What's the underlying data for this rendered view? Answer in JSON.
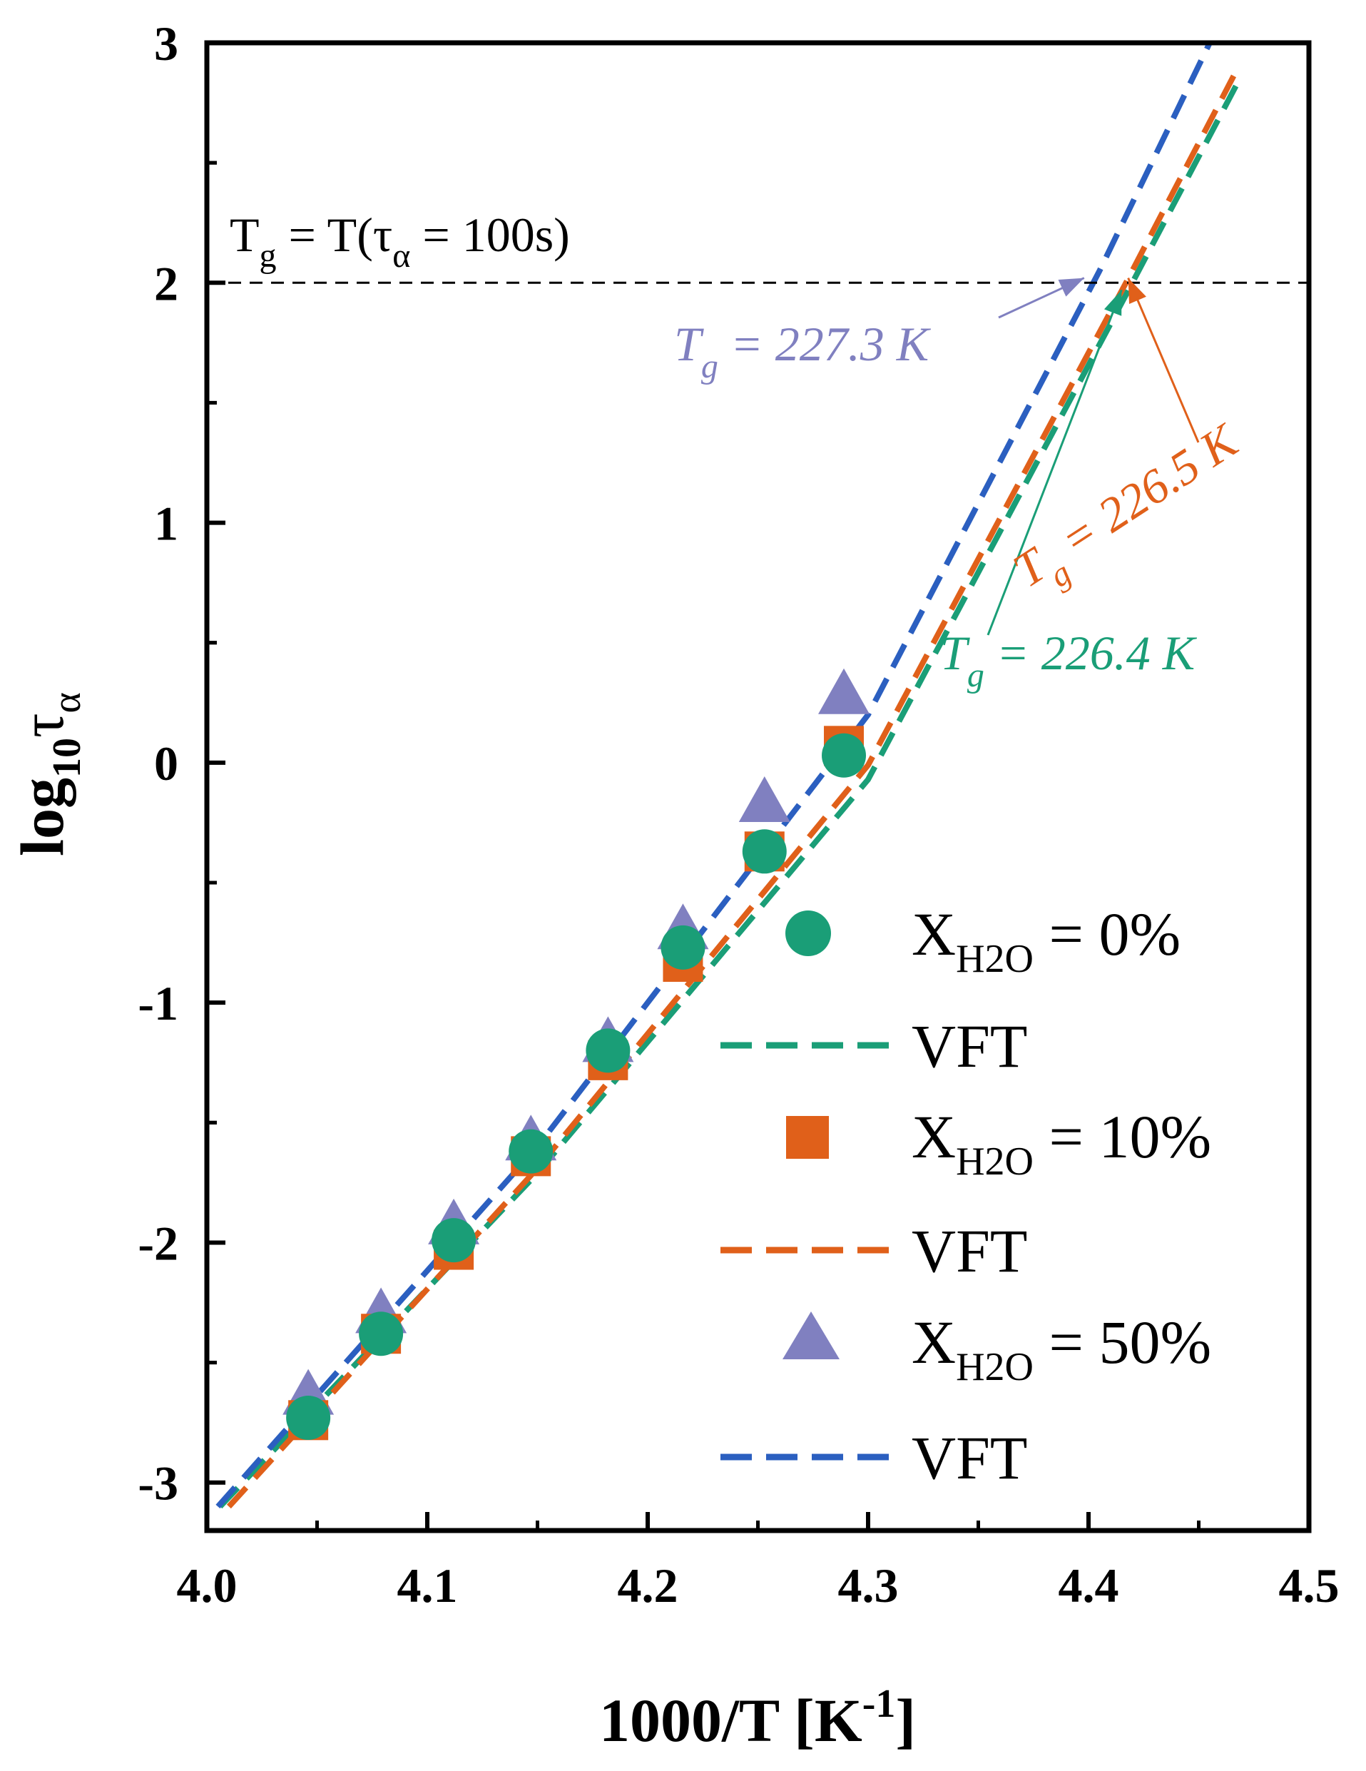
{
  "chart_data": {
    "type": "scatter",
    "xlabel_main": "1000/T [K",
    "xlabel_sup": "-1",
    "xlabel_end": "]",
    "ylabel_main": "log",
    "ylabel_sub": "10",
    "ylabel_tau": "τ",
    "ylabel_tau_sub": "α",
    "xlim": [
      4.0,
      4.5
    ],
    "ylim": [
      -3.2,
      3.0
    ],
    "xticks": [
      "4.0",
      "4.1",
      "4.2",
      "4.3",
      "4.4",
      "4.5"
    ],
    "xtick_values": [
      4.0,
      4.1,
      4.2,
      4.3,
      4.4,
      4.5
    ],
    "yticks": [
      "-3",
      "-2",
      "-1",
      "0",
      "1",
      "2",
      "3"
    ],
    "ytick_values": [
      -3,
      -2,
      -1,
      0,
      1,
      2,
      3
    ],
    "reference": {
      "y": 2,
      "label_T": "T",
      "label_g": "g",
      "label_mid": " = T(",
      "label_tau": "τ",
      "label_alpha": "α",
      "label_end": " = 100s)"
    },
    "series": [
      {
        "name": "X_H2O = 0%",
        "marker": "circle",
        "color": "#1a9e77",
        "x": [
          4.046,
          4.079,
          4.112,
          4.147,
          4.182,
          4.216,
          4.253,
          4.289
        ],
        "y": [
          -2.73,
          -2.38,
          -1.99,
          -1.62,
          -1.2,
          -0.77,
          -0.37,
          0.03
        ]
      },
      {
        "name": "X_H2O = 10%",
        "marker": "square",
        "color": "#e0601a",
        "x": [
          4.046,
          4.079,
          4.112,
          4.147,
          4.182,
          4.216,
          4.253,
          4.289
        ],
        "y": [
          -2.74,
          -2.38,
          -2.03,
          -1.64,
          -1.24,
          -0.83,
          -0.37,
          0.07
        ]
      },
      {
        "name": "X_H2O = 50%",
        "marker": "triangle",
        "color": "#8080c0",
        "x": [
          4.046,
          4.079,
          4.112,
          4.147,
          4.182,
          4.216,
          4.253,
          4.289
        ],
        "y": [
          -2.64,
          -2.3,
          -1.93,
          -1.58,
          -1.17,
          -0.7,
          -0.17,
          0.28
        ]
      }
    ],
    "fits": [
      {
        "name": "VFT",
        "color": "#1a9e77",
        "x": [
          4.006,
          4.15,
          4.3,
          4.417,
          4.468
        ],
        "y": [
          -3.1,
          -1.71,
          -0.07,
          1.95,
          2.84
        ]
      },
      {
        "name": "VFT",
        "color": "#e0601a",
        "x": [
          4.01,
          4.15,
          4.3,
          4.417,
          4.468
        ],
        "y": [
          -3.1,
          -1.69,
          -0.01,
          2.0,
          2.9
        ]
      },
      {
        "name": "VFT",
        "color": "#2b5fc0",
        "x": [
          4.005,
          4.15,
          4.3,
          4.405,
          4.455
        ],
        "y": [
          -3.1,
          -1.6,
          0.2,
          2.05,
          3.0
        ]
      }
    ],
    "annotations": [
      {
        "T": "T",
        "g": "g",
        "value": " = 227.3 K",
        "color": "#8080c0",
        "tip_x": 4.398,
        "tip_y": 2.02
      },
      {
        "T": "T",
        "g": "g",
        "value": " = 226.5 K",
        "color": "#e0601a",
        "tip_x": 4.418,
        "tip_y": 2.02
      },
      {
        "T": "T",
        "g": "g",
        "value": " = 226.4 K",
        "color": "#1a9e77",
        "tip_x": 4.415,
        "tip_y": 1.97
      }
    ],
    "legend": {
      "placement": "bottom-right",
      "entries": [
        {
          "X": "X",
          "sub": "H2O",
          "value": " = 0%",
          "marker": "circle",
          "color": "#1a9e77"
        },
        {
          "label": "VFT",
          "line": true,
          "color": "#1a9e77"
        },
        {
          "X": "X",
          "sub": "H2O",
          "value": " = 10%",
          "marker": "square",
          "color": "#e0601a"
        },
        {
          "label": "VFT",
          "line": true,
          "color": "#e0601a"
        },
        {
          "X": "X",
          "sub": "H2O",
          "value": " = 50%",
          "marker": "triangle",
          "color": "#8080c0"
        },
        {
          "label": "VFT",
          "line": true,
          "color": "#2b5fc0"
        }
      ]
    }
  }
}
